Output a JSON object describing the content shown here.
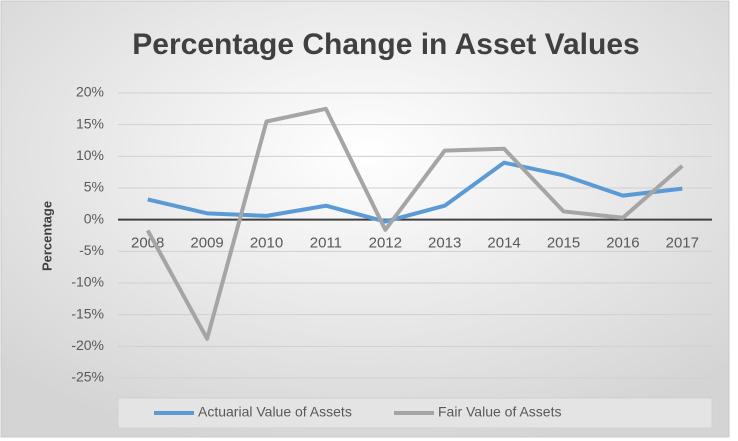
{
  "chart_data": {
    "type": "line",
    "title": "Percentage Change in Asset Values",
    "y_label": "Percentage",
    "categories": [
      "2008",
      "2009",
      "2010",
      "2011",
      "2012",
      "2013",
      "2014",
      "2015",
      "2016",
      "2017"
    ],
    "series": [
      {
        "name": "Actuarial Value of Assets",
        "color": "#5b9bd5",
        "values": [
          3.2,
          1.0,
          0.6,
          2.2,
          -0.3,
          2.2,
          9.0,
          7.0,
          3.8,
          4.9
        ]
      },
      {
        "name": "Fair Value of Assets",
        "color": "#a5a5a5",
        "values": [
          -1.7,
          -18.8,
          15.5,
          17.5,
          -1.6,
          10.9,
          11.2,
          1.3,
          0.3,
          8.5
        ]
      }
    ],
    "ylim": [
      -25,
      20
    ],
    "yticks": [
      {
        "value": 20,
        "label": "20%"
      },
      {
        "value": 15,
        "label": "15%"
      },
      {
        "value": 10,
        "label": "10%"
      },
      {
        "value": 5,
        "label": "5%"
      },
      {
        "value": 0,
        "label": "0%"
      },
      {
        "value": -5,
        "label": "-5%"
      },
      {
        "value": -10,
        "label": "-10%"
      },
      {
        "value": -15,
        "label": "-15%"
      },
      {
        "value": -20,
        "label": "-20%"
      },
      {
        "value": -25,
        "label": "-25%"
      }
    ],
    "grid": true,
    "legend": "bottom"
  }
}
